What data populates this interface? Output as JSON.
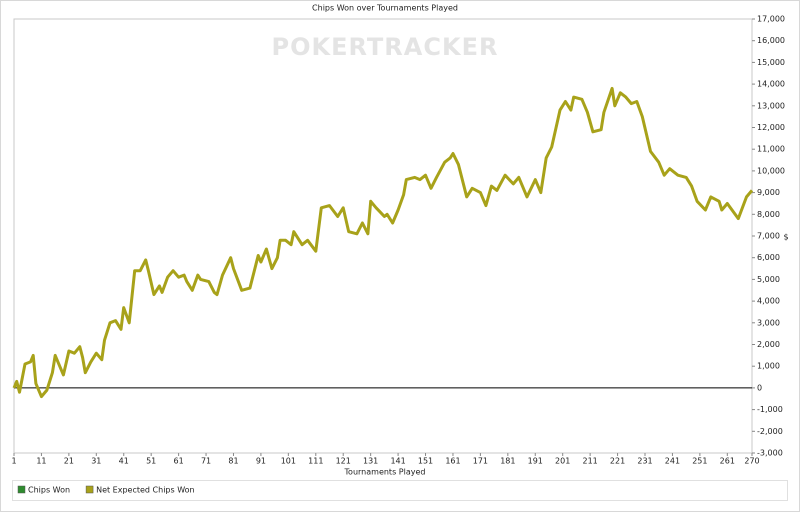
{
  "chart_data": {
    "type": "line",
    "title": "Chips Won over Tournaments Played",
    "watermark": "POKERTRACKER",
    "x_label": "Tournaments Played",
    "y_label": "$",
    "legend_items": [
      {
        "name": "Chips Won",
        "color": "#2e8b2e"
      },
      {
        "name": "Net Expected Chips Won",
        "color": "#a8a21a"
      }
    ],
    "x": [
      1,
      2,
      3,
      5,
      7,
      8,
      9,
      11,
      13,
      15,
      16,
      19,
      21,
      23,
      25,
      26,
      27,
      29,
      31,
      33,
      34,
      36,
      38,
      40,
      41,
      43,
      45,
      47,
      49,
      50,
      52,
      54,
      55,
      57,
      59,
      61,
      63,
      64,
      66,
      68,
      69,
      72,
      74,
      75,
      77,
      80,
      81,
      84,
      87,
      90,
      91,
      93,
      95,
      97,
      98,
      100,
      102,
      103,
      105,
      106,
      108,
      111,
      113,
      116,
      119,
      121,
      123,
      126,
      128,
      130,
      131,
      133,
      136,
      137,
      139,
      141,
      143,
      144,
      147,
      149,
      151,
      153,
      155,
      158,
      160,
      161,
      163,
      166,
      168,
      171,
      173,
      175,
      177,
      180,
      183,
      185,
      188,
      191,
      193,
      195,
      197,
      200,
      202,
      204,
      205,
      208,
      210,
      212,
      215,
      216,
      219,
      220,
      222,
      224,
      226,
      228,
      230,
      233,
      236,
      238,
      240,
      243,
      246,
      248,
      250,
      253,
      255,
      258,
      259,
      261,
      265,
      268,
      270
    ],
    "series": [
      {
        "name": "Net Expected Chips Won",
        "color": "#a8a21a",
        "values": [
          0,
          300,
          -200,
          1100,
          1200,
          1500,
          200,
          -400,
          -100,
          700,
          1500,
          600,
          1700,
          1600,
          1900,
          1400,
          700,
          1200,
          1600,
          1300,
          2200,
          3000,
          3100,
          2700,
          3700,
          3000,
          5400,
          5400,
          5900,
          5400,
          4300,
          4700,
          4400,
          5100,
          5400,
          5100,
          5200,
          4900,
          4500,
          5200,
          5000,
          4900,
          4400,
          4300,
          5200,
          6000,
          5500,
          4500,
          4600,
          6100,
          5800,
          6400,
          5500,
          6000,
          6800,
          6800,
          6600,
          7200,
          6800,
          6600,
          6800,
          6300,
          8300,
          8400,
          7900,
          8300,
          7200,
          7100,
          7600,
          7100,
          8600,
          8300,
          7900,
          8000,
          7600,
          8200,
          8900,
          9600,
          9700,
          9600,
          9800,
          9200,
          9700,
          10400,
          10600,
          10800,
          10300,
          8800,
          9200,
          9000,
          8400,
          9300,
          9100,
          9800,
          9400,
          9700,
          8800,
          9600,
          9000,
          10600,
          11100,
          12800,
          13200,
          12800,
          13400,
          13300,
          12700,
          11800,
          11900,
          12700,
          13800,
          13000,
          13600,
          13400,
          13100,
          13200,
          12500,
          10900,
          10400,
          9800,
          10100,
          9800,
          9700,
          9300,
          8600,
          8200,
          8800,
          8600,
          8200,
          8500,
          7800,
          8800,
          9100
        ]
      }
    ],
    "xlim": [
      1,
      270
    ],
    "xticks": [
      1,
      11,
      21,
      31,
      41,
      51,
      61,
      71,
      81,
      91,
      101,
      111,
      121,
      131,
      141,
      151,
      161,
      171,
      181,
      191,
      201,
      211,
      221,
      231,
      241,
      251,
      261,
      270
    ],
    "ylim": [
      -3000,
      17000
    ],
    "yticks": [
      {
        "value": -3000,
        "label": "-3,000"
      },
      {
        "value": -2000,
        "label": "-2,000"
      },
      {
        "value": -1000,
        "label": "-1,000"
      },
      0,
      {
        "value": 1000,
        "label": "1,000"
      },
      {
        "value": 2000,
        "label": "2,000"
      },
      {
        "value": 3000,
        "label": "3,000"
      },
      {
        "value": 4000,
        "label": "4,000"
      },
      {
        "value": 5000,
        "label": "5,000"
      },
      {
        "value": 6000,
        "label": "6,000"
      },
      {
        "value": 7000,
        "label": "7,000"
      },
      {
        "value": 8000,
        "label": "8,000"
      },
      {
        "value": 9000,
        "label": "9,000"
      },
      {
        "value": 10000,
        "label": "10,000"
      },
      {
        "value": 11000,
        "label": "11,000"
      },
      {
        "value": 12000,
        "label": "12,000"
      },
      {
        "value": 13000,
        "label": "13,000"
      },
      {
        "value": 14000,
        "label": "14,000"
      },
      {
        "value": 15000,
        "label": "15,000"
      },
      {
        "value": 16000,
        "label": "16,000"
      },
      {
        "value": 17000,
        "label": "17,000"
      }
    ],
    "zero_line": true
  }
}
